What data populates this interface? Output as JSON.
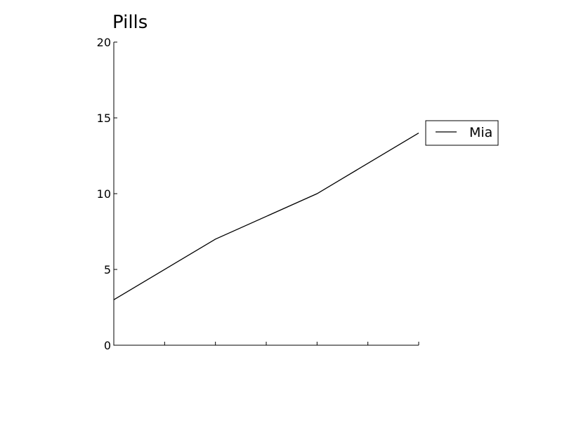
{
  "chart_data": {
    "type": "line",
    "title": "Pills",
    "xlabel": "",
    "ylabel": "",
    "x": [
      0,
      1,
      2,
      3
    ],
    "xlim": [
      0,
      3
    ],
    "ylim": [
      0,
      20
    ],
    "yticks": [
      0,
      5,
      10,
      15,
      20
    ],
    "x_minor_ticks": [
      0,
      0.5,
      1,
      1.5,
      2,
      2.5,
      3
    ],
    "series": [
      {
        "name": "Mia",
        "values": [
          3,
          7,
          10,
          14
        ],
        "color": "#000000"
      }
    ],
    "legend": {
      "position": "right",
      "entries": [
        "Mia"
      ]
    },
    "grid": false
  }
}
